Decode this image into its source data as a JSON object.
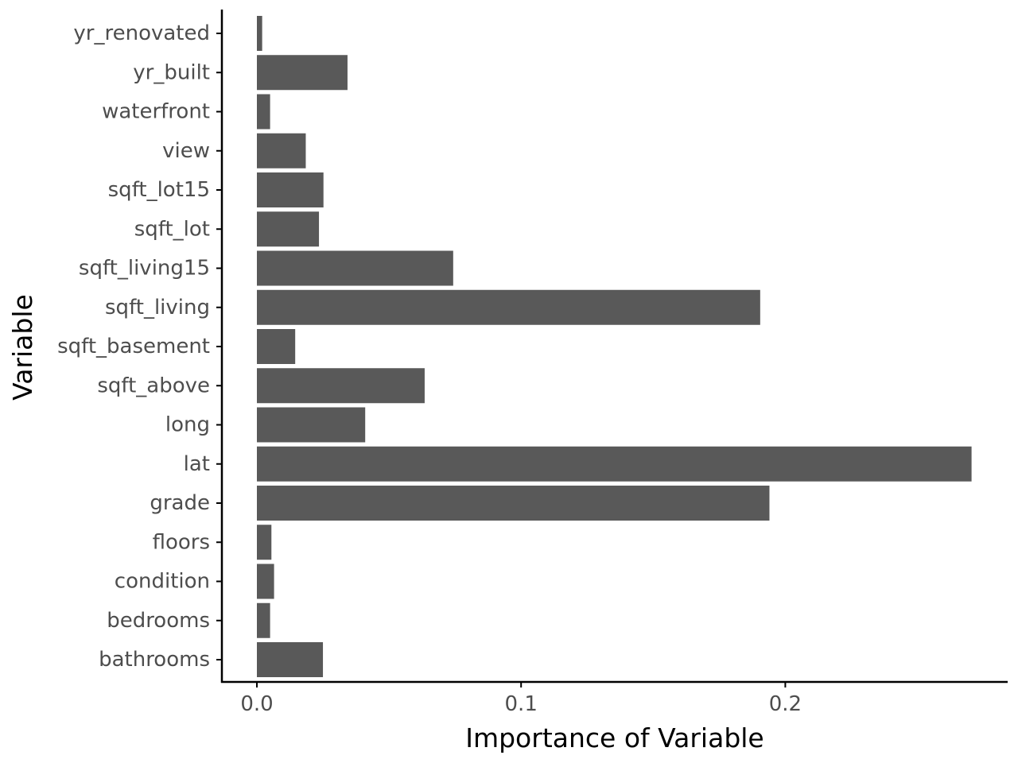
{
  "chart_data": {
    "type": "bar",
    "orientation": "horizontal",
    "title": "",
    "xlabel": "Importance of Variable",
    "ylabel": "Variable",
    "categories": [
      "bathrooms",
      "bedrooms",
      "condition",
      "floors",
      "grade",
      "lat",
      "long",
      "sqft_above",
      "sqft_basement",
      "sqft_living",
      "sqft_living15",
      "sqft_lot",
      "sqft_lot15",
      "view",
      "waterfront",
      "yr_built",
      "yr_renovated"
    ],
    "values": [
      0.025,
      0.005,
      0.0065,
      0.0055,
      0.194,
      0.2705,
      0.041,
      0.0635,
      0.0145,
      0.1905,
      0.0743,
      0.0235,
      0.0252,
      0.0185,
      0.005,
      0.0343,
      0.002
    ],
    "x_ticks": [
      "0.0",
      "0.1",
      "0.2"
    ],
    "x_tick_values": [
      0.0,
      0.1,
      0.2
    ],
    "xlim": [
      -0.0135,
      0.284
    ],
    "grid": false,
    "legend": "none",
    "bar_color": "#595959",
    "axis_color": "#000000",
    "tick_label_color": "#4d4d4d"
  }
}
